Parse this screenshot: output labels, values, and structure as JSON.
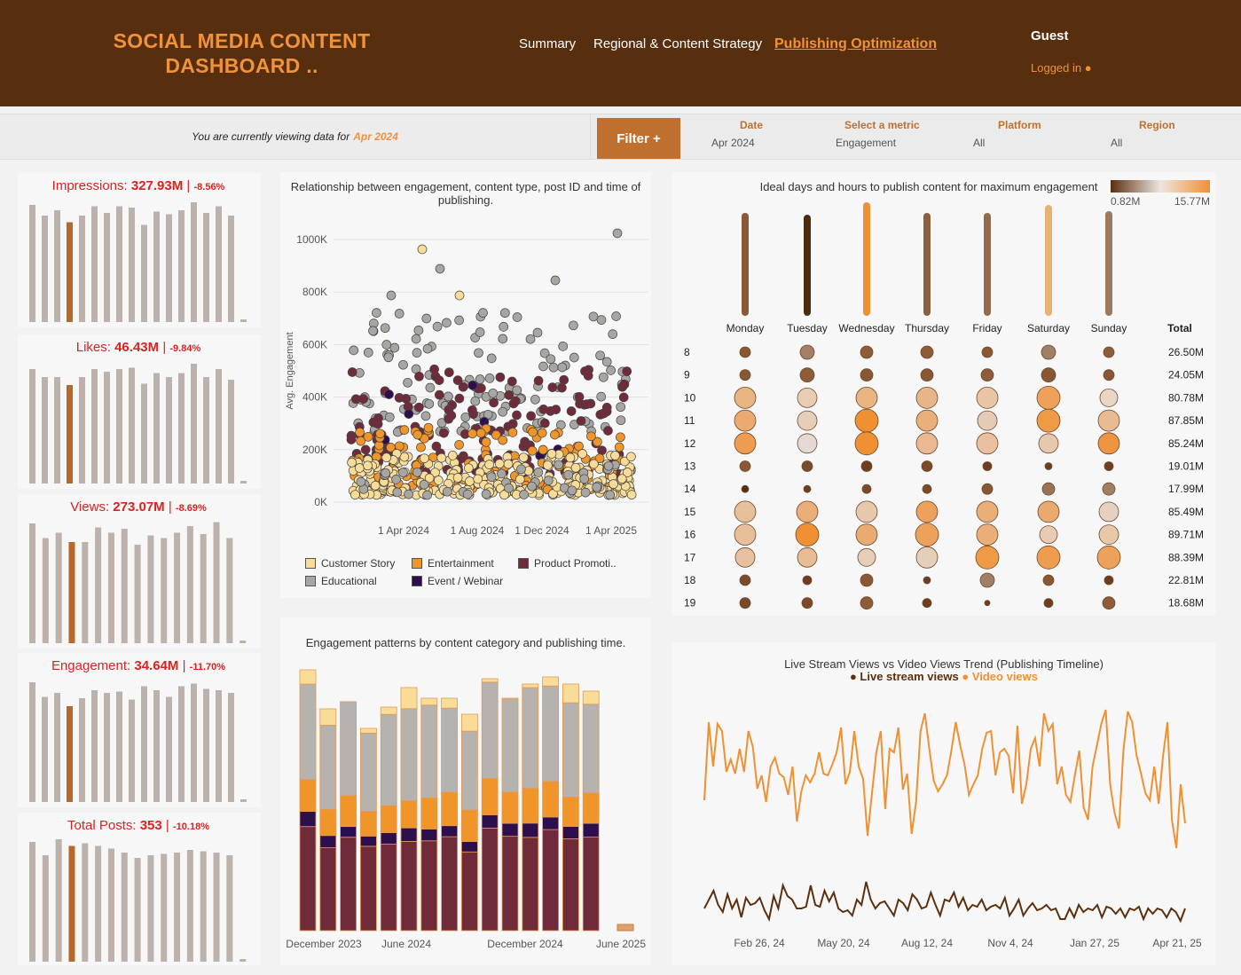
{
  "header": {
    "title_line1": "SOCIAL MEDIA CONTENT",
    "title_line2": "DASHBOARD ..",
    "nav": [
      "Summary",
      "Regional & Content Strategy",
      "Publishing Optimization"
    ],
    "user": "Guest",
    "logged_in": "Logged in ●"
  },
  "filter_bar": {
    "viewing_prefix": "You are currently viewing data for",
    "viewing_period": "Apr 2024",
    "filter_button": "Filter +",
    "filters": [
      {
        "label": "Date",
        "value": "Apr 2024"
      },
      {
        "label": "Select a metric",
        "value": "Engagement"
      },
      {
        "label": "Platform",
        "value": "All"
      },
      {
        "label": "Region",
        "value": "All"
      }
    ]
  },
  "kpis": [
    {
      "name": "Impressions:",
      "value": "327.93M",
      "sep": "|",
      "change": "-8.56%",
      "bars": [
        0.88,
        0.8,
        0.84,
        0.75,
        0.8,
        0.87,
        0.82,
        0.87,
        0.86,
        0.73,
        0.83,
        0.81,
        0.84,
        0.9,
        0.82,
        0.87,
        0.8,
        0.02
      ]
    },
    {
      "name": "Likes:",
      "value": "46.43M",
      "sep": "|",
      "change": "-9.84%",
      "bars": [
        0.86,
        0.8,
        0.8,
        0.74,
        0.8,
        0.86,
        0.84,
        0.86,
        0.87,
        0.75,
        0.83,
        0.8,
        0.83,
        0.9,
        0.8,
        0.86,
        0.78,
        0.02
      ]
    },
    {
      "name": "Views:",
      "value": "273.07M",
      "sep": "|",
      "change": "-8.69%",
      "bars": [
        0.9,
        0.79,
        0.83,
        0.76,
        0.76,
        0.87,
        0.83,
        0.86,
        0.74,
        0.81,
        0.79,
        0.83,
        0.88,
        0.82,
        0.91,
        0.79,
        0.02
      ]
    },
    {
      "name": "Engagement:",
      "value": "34.64M",
      "sep": "|",
      "change": "-11.70%",
      "bars": [
        0.9,
        0.79,
        0.82,
        0.72,
        0.78,
        0.84,
        0.82,
        0.83,
        0.77,
        0.87,
        0.84,
        0.79,
        0.87,
        0.89,
        0.85,
        0.84,
        0.82,
        0.02
      ]
    },
    {
      "name": "Total Posts:",
      "value": "353",
      "sep": "|",
      "change": "-10.18%",
      "bars": [
        0.9,
        0.8,
        0.92,
        0.87,
        0.89,
        0.87,
        0.85,
        0.82,
        0.78,
        0.8,
        0.81,
        0.82,
        0.84,
        0.83,
        0.82,
        0.8,
        0.02
      ]
    }
  ],
  "kpi_highlight_color": "#b8692a",
  "kpi_bar_color": "#bcb1ab",
  "scatter": {
    "title": "Relationship between engagement, content type, post ID and time of publishing.",
    "ylabel": "Avg. Engagement",
    "yticks": [
      "1000K",
      "800K",
      "600K",
      "400K",
      "200K",
      "0K"
    ],
    "xticks": [
      "1 Apr 2024",
      "1 Aug 2024",
      "1 Dec 2024",
      "1 Apr 2025"
    ],
    "legend": [
      {
        "label": "Customer Story",
        "color": "#f8dc98"
      },
      {
        "label": "Entertainment",
        "color": "#f0952a"
      },
      {
        "label": "Product Promoti..",
        "color": "#6f2b3a"
      },
      {
        "label": "Educational",
        "color": "#a8a6a2"
      },
      {
        "label": "Event / Webinar",
        "color": "#2d0f4e"
      }
    ]
  },
  "heatmap": {
    "title": "Ideal days and hours to publish content for maximum engagement",
    "legend_min": "0.82M",
    "legend_max": "15.77M",
    "days": [
      "Monday",
      "Tuesday",
      "Wednesday",
      "Thursday",
      "Friday",
      "Saturday",
      "Sunday"
    ],
    "total_label": "Total",
    "hours": [
      "8",
      "9",
      "10",
      "11",
      "12",
      "13",
      "14",
      "15",
      "16",
      "17",
      "18",
      "19"
    ],
    "totals": [
      "26.50M",
      "24.05M",
      "80.78M",
      "87.85M",
      "85.24M",
      "19.01M",
      "17.99M",
      "85.49M",
      "89.71M",
      "88.39M",
      "22.81M",
      "18.68M"
    ],
    "day_bar_colors": [
      "#8a5a36",
      "#4e2a10",
      "#ef9133",
      "#8a6040",
      "#916b4b",
      "#e9b06f",
      "#9b7b5c"
    ]
  },
  "stacked": {
    "title": "Engagement patterns by content category and publishing time.",
    "xticks": [
      "December 2023",
      "June 2024",
      "December 2024",
      "June 2025"
    ]
  },
  "line": {
    "title": "Live Stream Views vs Video Views Trend  (Publishing Timeline)",
    "legend_live": "● Live stream views",
    "legend_video": "● Video views",
    "xticks": [
      "Feb 26, 24",
      "May 20, 24",
      "Aug 12, 24",
      "Nov 4, 24",
      "Jan 27, 25",
      "Apr 21, 25"
    ],
    "live_color": "#5a300e",
    "video_color": "#ef9133"
  }
}
